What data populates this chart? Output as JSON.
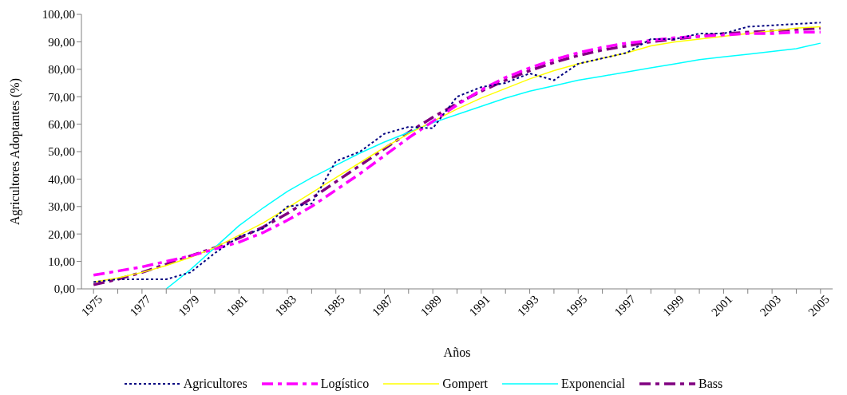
{
  "chart_data": {
    "type": "line",
    "xlabel": "Años",
    "ylabel": "Agricultores Adoptantes (%)",
    "categories": [
      "1975",
      null,
      "1977",
      null,
      "1979",
      null,
      "1981",
      null,
      "1983",
      null,
      "1985",
      null,
      "1987",
      null,
      "1989",
      null,
      "1991",
      null,
      "1993",
      null,
      "1995",
      null,
      "1997",
      null,
      "1999",
      null,
      "2001",
      null,
      "2003",
      null,
      "2005"
    ],
    "ylim": [
      0,
      100
    ],
    "yticks": [
      {
        "value": 0,
        "label": "0,00"
      },
      {
        "value": 10,
        "label": "10,00"
      },
      {
        "value": 20,
        "label": "20,00"
      },
      {
        "value": 30,
        "label": "30,00"
      },
      {
        "value": 40,
        "label": "40,00"
      },
      {
        "value": 50,
        "label": "50,00"
      },
      {
        "value": 60,
        "label": "60,00"
      },
      {
        "value": 70,
        "label": "70,00"
      },
      {
        "value": 80,
        "label": "80,00"
      },
      {
        "value": 90,
        "label": "90,00"
      },
      {
        "value": 100,
        "label": "100,00"
      }
    ],
    "legend": "bottom",
    "series": [
      {
        "name": "Agricultores",
        "color": "#000080",
        "line_style": "dotted",
        "values": [
          2.5,
          3.5,
          3.5,
          3.5,
          6,
          13,
          19,
          22,
          30,
          31,
          46.5,
          50,
          56.5,
          59,
          58.5,
          70,
          73.5,
          75,
          78.5,
          76,
          82,
          84,
          86,
          91,
          91,
          93,
          93,
          95.5,
          96,
          96.5,
          97
        ]
      },
      {
        "name": "Logístico",
        "color": "#ff00ff",
        "line_style": "dashed",
        "values": [
          5,
          6.5,
          8,
          10,
          12,
          14.5,
          17,
          20.5,
          25,
          30,
          36,
          42,
          48.5,
          55,
          61,
          67,
          72.5,
          77,
          80.5,
          83.5,
          86,
          88,
          89.5,
          90.5,
          91.5,
          92,
          92.5,
          93,
          93,
          93.5,
          93.5
        ]
      },
      {
        "name": "Gompert",
        "color": "#ffff00",
        "line_style": "solid",
        "values": [
          2.5,
          4,
          6,
          8.5,
          11.5,
          15,
          19.5,
          24,
          29.5,
          35,
          40.5,
          46,
          51.5,
          56.5,
          61,
          65.5,
          69.5,
          73,
          76.5,
          79.5,
          82,
          84,
          86,
          88.5,
          90,
          91,
          92,
          93,
          94,
          95,
          95.5
        ]
      },
      {
        "name": "Exponencial",
        "color": "#00ffff",
        "line_style": "solid",
        "values": [
          null,
          null,
          null,
          0,
          7,
          15,
          23,
          29.5,
          35.5,
          40.5,
          45,
          49.5,
          53.5,
          57,
          60.5,
          63.5,
          66.5,
          69.5,
          72,
          74,
          76,
          77.5,
          79,
          80.5,
          82,
          83.5,
          84.5,
          85.5,
          86.5,
          87.5,
          89.5
        ]
      },
      {
        "name": "Bass",
        "color": "#800080",
        "line_style": "dashed",
        "values": [
          1.5,
          3.5,
          6,
          9,
          12,
          15,
          18.5,
          22.5,
          27.5,
          33,
          39,
          45,
          51,
          57,
          62.5,
          67.5,
          72,
          76,
          79.5,
          82.5,
          85,
          87,
          88.5,
          90,
          91,
          92,
          93,
          93.5,
          94,
          94.5,
          95
        ]
      }
    ]
  }
}
